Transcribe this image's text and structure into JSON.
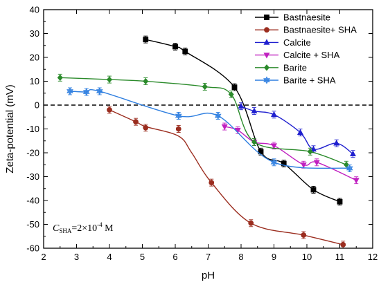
{
  "chart_data": {
    "type": "line",
    "xlabel": "pH",
    "ylabel": "Zeta-potential (mV)",
    "xlim": [
      2,
      12
    ],
    "ylim": [
      -60,
      40
    ],
    "x_ticks": [
      2,
      3,
      4,
      5,
      6,
      7,
      8,
      9,
      10,
      11,
      12
    ],
    "y_ticks": [
      -60,
      -50,
      -40,
      -30,
      -20,
      -10,
      0,
      10,
      20,
      30,
      40
    ],
    "zero_line": {
      "value": 0,
      "style": "dashed",
      "color": "#000000"
    },
    "legend_position": "top-right",
    "annotation": {
      "main": "C",
      "subscript": "SHA",
      "equals": "=2×10",
      "exponent": "-4",
      "unit": " M"
    },
    "series": [
      {
        "name": "Bastnaesite",
        "color": "#000000",
        "marker": "square",
        "x": [
          5.1,
          6.0,
          6.3,
          7.8,
          8.6,
          9.3,
          10.2,
          11.0
        ],
        "y": [
          27.5,
          24.5,
          22.5,
          7.5,
          -19.5,
          -24.5,
          -35.5,
          -40.5
        ]
      },
      {
        "name": "Bastnaesite+ SHA",
        "color": "#9b2d1f",
        "marker": "circle",
        "x": [
          4.0,
          4.8,
          5.1,
          6.1,
          7.1,
          8.3,
          9.9,
          11.1
        ],
        "y": [
          -2.0,
          -7.0,
          -9.5,
          -10.0,
          -32.5,
          -49.5,
          -54.5,
          -58.5
        ],
        "curve_x": [
          4.0,
          4.8,
          5.1,
          6.1,
          6.5,
          7.1,
          8.3,
          9.9,
          11.1
        ],
        "curve_y": [
          -2.0,
          -7.0,
          -9.0,
          -13.0,
          -20.0,
          -32.5,
          -49.5,
          -54.5,
          -58.5
        ]
      },
      {
        "name": "Calcite",
        "color": "#1f1fcf",
        "marker": "triangle-up",
        "x": [
          8.0,
          8.4,
          9.0,
          9.8,
          10.2,
          10.9,
          11.4
        ],
        "y": [
          -0.5,
          -2.5,
          -4.0,
          -11.5,
          -18.5,
          -16.0,
          -20.5
        ]
      },
      {
        "name": "Calcite + SHA",
        "color": "#c020c0",
        "marker": "triangle-down",
        "x": [
          7.5,
          7.9,
          8.4,
          9.0,
          9.9,
          10.3,
          11.5
        ],
        "y": [
          -9.0,
          -10.5,
          -15.5,
          -17.0,
          -25.0,
          -24.0,
          -31.5
        ]
      },
      {
        "name": "Barite",
        "color": "#2a8a2a",
        "marker": "diamond",
        "x": [
          2.5,
          4.0,
          5.1,
          6.9,
          7.7,
          8.4,
          10.1,
          11.2
        ],
        "y": [
          11.5,
          10.7,
          10.0,
          7.7,
          4.5,
          -15.5,
          -19.5,
          -25.0
        ]
      },
      {
        "name": "Barite + SHA",
        "color": "#2f7fe0",
        "marker": "star",
        "x": [
          2.8,
          3.3,
          3.7,
          6.1,
          7.3,
          9.0,
          11.3
        ],
        "y": [
          5.8,
          5.5,
          5.8,
          -4.5,
          -4.5,
          -24.0,
          -26.5
        ]
      }
    ]
  }
}
